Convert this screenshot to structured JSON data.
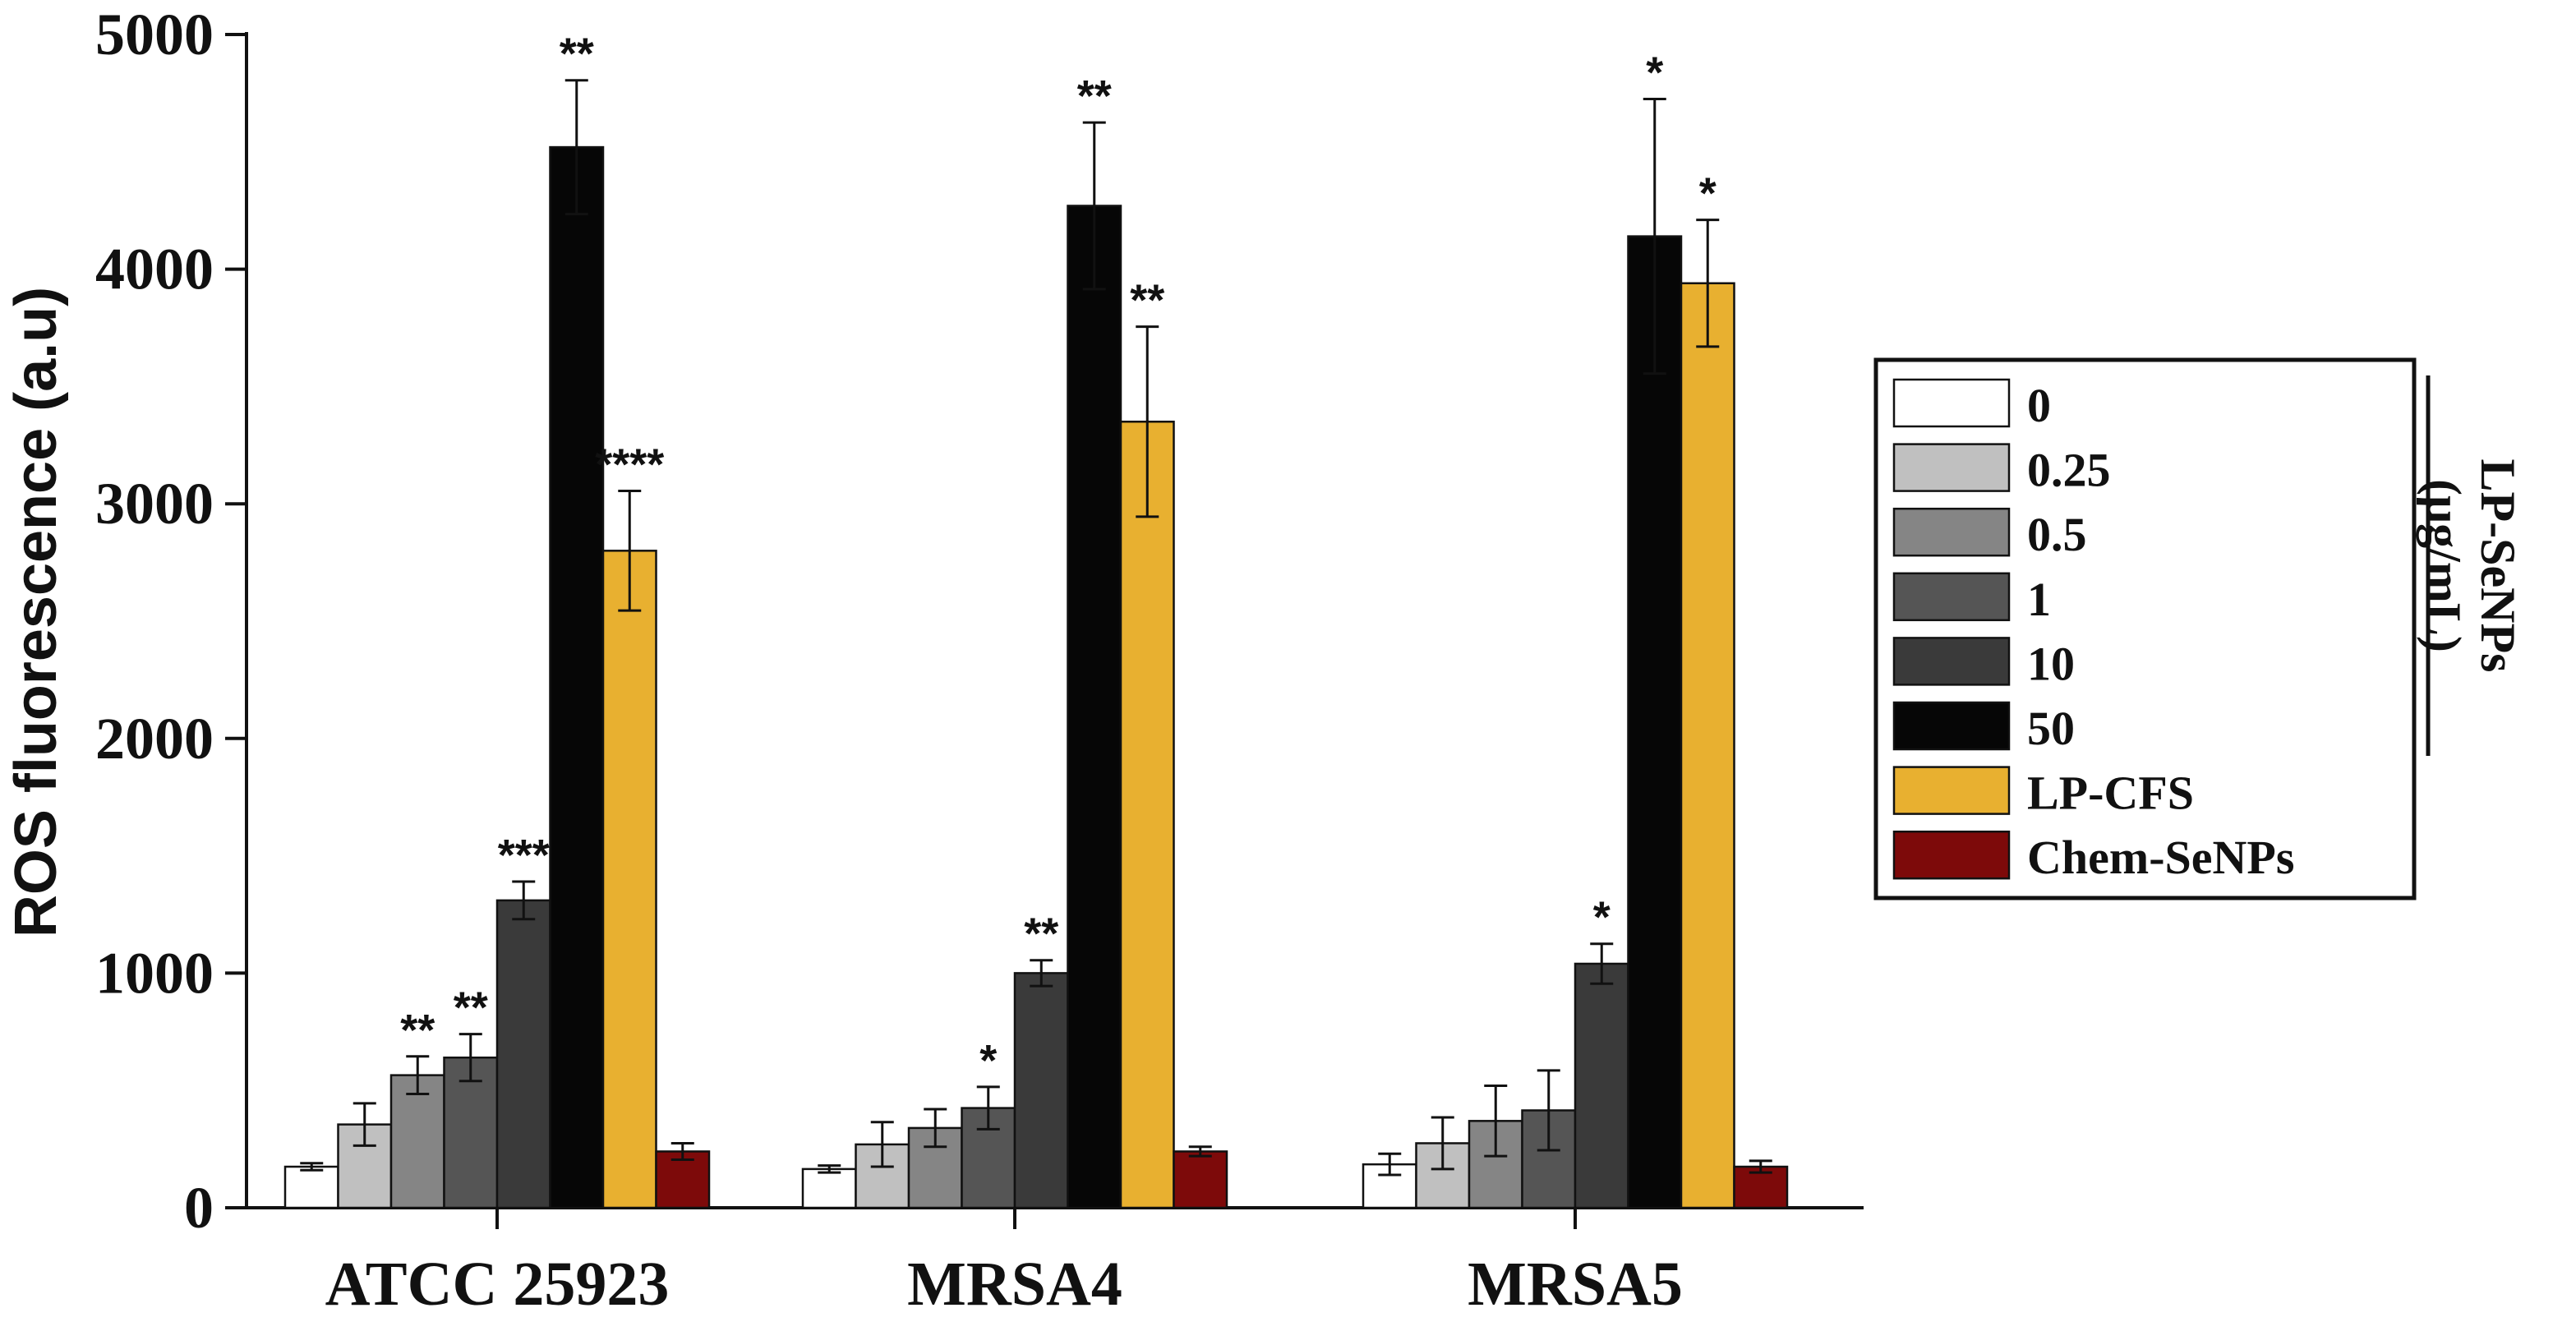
{
  "chart_data": {
    "type": "bar",
    "title": "",
    "xlabel": "",
    "ylabel": "ROS fluorescence (a.u)",
    "ylim": [
      0,
      5000
    ],
    "yticks": [
      0,
      1000,
      2000,
      3000,
      4000,
      5000
    ],
    "categories": [
      "ATCC 25923",
      "MRSA4",
      "MRSA5"
    ],
    "legend_position": "right",
    "legend_group_title": "LP-SeNPs (μg/mL)",
    "series": [
      {
        "name": "0",
        "color": "#ffffff",
        "values": [
          175,
          165,
          185
        ],
        "errors": [
          15,
          15,
          45
        ],
        "sig": [
          "",
          "",
          ""
        ]
      },
      {
        "name": "0.25",
        "color": "#c0c0c0",
        "values": [
          355,
          270,
          275
        ],
        "errors": [
          90,
          95,
          110
        ],
        "sig": [
          "",
          "",
          ""
        ]
      },
      {
        "name": "0.5",
        "color": "#858585",
        "values": [
          565,
          340,
          370
        ],
        "errors": [
          80,
          80,
          150
        ],
        "sig": [
          "**",
          "",
          ""
        ]
      },
      {
        "name": "1",
        "color": "#555555",
        "values": [
          640,
          425,
          415
        ],
        "errors": [
          100,
          90,
          170
        ],
        "sig": [
          "**",
          "*",
          ""
        ]
      },
      {
        "name": "10",
        "color": "#3a3a3a",
        "values": [
          1310,
          1000,
          1040
        ],
        "errors": [
          80,
          55,
          85
        ],
        "sig": [
          "***",
          "**",
          "*"
        ]
      },
      {
        "name": "50",
        "color": "#060606",
        "values": [
          4520,
          4270,
          4140
        ],
        "errors": [
          285,
          355,
          585
        ],
        "sig": [
          "**",
          "**",
          "*"
        ]
      },
      {
        "name": "LP-CFS",
        "color": "#e8b030",
        "values": [
          2800,
          3350,
          3940
        ],
        "errors": [
          255,
          405,
          270
        ],
        "sig": [
          "****",
          "**",
          "*"
        ]
      },
      {
        "name": "Chem-SeNPs",
        "color": "#7d0a0a",
        "values": [
          240,
          240,
          175
        ],
        "errors": [
          35,
          20,
          25
        ],
        "sig": [
          "",
          "",
          ""
        ]
      }
    ]
  }
}
